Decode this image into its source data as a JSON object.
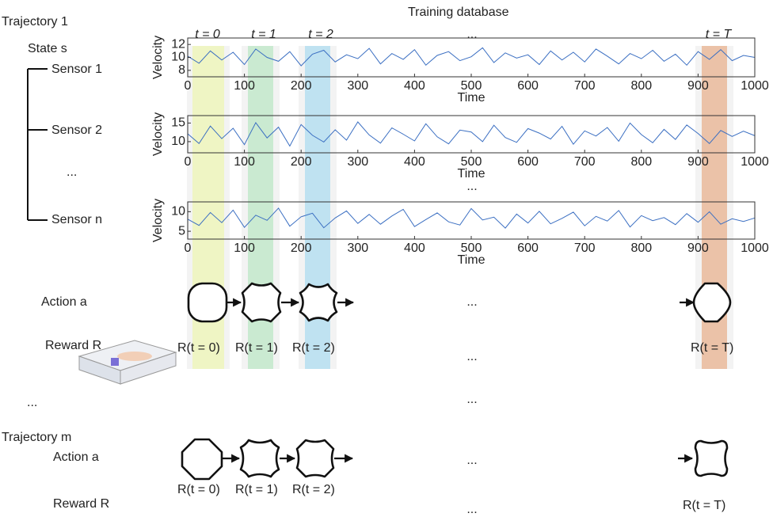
{
  "diagram": {
    "title": "Training database",
    "trajectory_1": {
      "label": "Trajectory 1",
      "state": "State s",
      "sensors": [
        "Sensor 1",
        "Sensor 2",
        "...",
        "Sensor n"
      ],
      "time_labels": [
        "t = 0",
        "t = 1",
        "t = 2",
        "...",
        "t = T"
      ],
      "sensor_ellipsis": "...",
      "action": "Action a",
      "action_ellipsis": "...",
      "reward": "Reward R",
      "rewards": [
        "R(t = 0)",
        "R(t = 1)",
        "R(t = 2)",
        "...",
        "R(t = T)"
      ]
    },
    "trajectory_ellipsis": "...",
    "middle_ellipsis": "...",
    "trajectory_m": {
      "label": "Trajectory m",
      "action": "Action a",
      "action_ellipsis": "...",
      "reward": "Reward R",
      "rewards": [
        "R(t = 0)",
        "R(t = 1)",
        "R(t = 2)",
        "...",
        "R(t = T)"
      ]
    }
  },
  "chart_data": [
    {
      "type": "line",
      "ylabel": "Velocity",
      "xlabel": "Time",
      "x": [
        0,
        20,
        40,
        60,
        80,
        100,
        120,
        140,
        160,
        180,
        200,
        220,
        240,
        260,
        280,
        300,
        320,
        340,
        360,
        380,
        400,
        420,
        440,
        460,
        480,
        500,
        520,
        540,
        560,
        580,
        600,
        620,
        640,
        660,
        680,
        700,
        720,
        740,
        760,
        780,
        800,
        820,
        840,
        860,
        880,
        900,
        920,
        940,
        960,
        980,
        1000
      ],
      "series": [
        {
          "color": "#3b6fc2",
          "values": [
            10.2,
            9.1,
            11.0,
            9.6,
            10.8,
            8.9,
            11.3,
            10.0,
            9.4,
            10.9,
            8.7,
            10.5,
            11.1,
            9.3,
            10.4,
            9.8,
            11.4,
            9.0,
            10.6,
            9.7,
            11.2,
            8.8,
            10.3,
            10.9,
            9.5,
            10.1,
            11.5,
            9.2,
            10.7,
            9.9,
            10.4,
            8.9,
            11.0,
            9.6,
            10.8,
            9.3,
            11.3,
            10.2,
            9.0,
            10.6,
            9.8,
            11.1,
            9.4,
            10.5,
            8.8,
            10.9,
            9.7,
            11.2,
            9.5,
            10.3,
            10.0
          ]
        }
      ],
      "xlim": [
        0,
        1000
      ],
      "ylim": [
        7,
        13
      ],
      "xticks": [
        0,
        100,
        200,
        300,
        400,
        500,
        600,
        700,
        800,
        900,
        1000
      ],
      "yticks": [
        8,
        10,
        12
      ]
    },
    {
      "type": "line",
      "ylabel": "Velocity",
      "xlabel": "Time",
      "x": [
        0,
        20,
        40,
        60,
        80,
        100,
        120,
        140,
        160,
        180,
        200,
        220,
        240,
        260,
        280,
        300,
        320,
        340,
        360,
        380,
        400,
        420,
        440,
        460,
        480,
        500,
        520,
        540,
        560,
        580,
        600,
        620,
        640,
        660,
        680,
        700,
        720,
        740,
        760,
        780,
        800,
        820,
        840,
        860,
        880,
        900,
        920,
        940,
        960,
        980,
        1000
      ],
      "series": [
        {
          "color": "#3b6fc2",
          "values": [
            12.1,
            9.5,
            14.2,
            10.8,
            13.6,
            9.2,
            15.1,
            11.0,
            13.9,
            8.8,
            14.6,
            11.7,
            9.9,
            13.2,
            10.4,
            15.3,
            11.8,
            9.6,
            13.7,
            12.0,
            10.2,
            14.8,
            11.3,
            9.4,
            13.1,
            12.6,
            10.0,
            14.4,
            11.1,
            9.8,
            13.5,
            12.3,
            10.7,
            14.1,
            9.3,
            12.9,
            11.5,
            13.8,
            10.1,
            15.0,
            11.9,
            9.7,
            13.3,
            10.6,
            14.5,
            12.2,
            9.5,
            13.0,
            11.4,
            12.8,
            11.6
          ]
        }
      ],
      "xlim": [
        0,
        1000
      ],
      "ylim": [
        7,
        17
      ],
      "xticks": [
        0,
        100,
        200,
        300,
        400,
        500,
        600,
        700,
        800,
        900,
        1000
      ],
      "yticks": [
        10,
        15
      ]
    },
    {
      "type": "line",
      "ylabel": "Velocity",
      "xlabel": "Time",
      "x": [
        0,
        20,
        40,
        60,
        80,
        100,
        120,
        140,
        160,
        180,
        200,
        220,
        240,
        260,
        280,
        300,
        320,
        340,
        360,
        380,
        400,
        420,
        440,
        460,
        480,
        500,
        520,
        540,
        560,
        580,
        600,
        620,
        640,
        660,
        680,
        700,
        720,
        740,
        760,
        780,
        800,
        820,
        840,
        860,
        880,
        900,
        920,
        940,
        960,
        980,
        1000
      ],
      "series": [
        {
          "color": "#3b6fc2",
          "values": [
            8.1,
            6.5,
            9.8,
            7.2,
            10.4,
            6.0,
            9.1,
            7.8,
            10.9,
            6.3,
            8.7,
            9.6,
            5.9,
            8.4,
            10.2,
            7.0,
            9.3,
            6.8,
            8.9,
            10.6,
            6.2,
            8.0,
            9.7,
            7.4,
            6.6,
            10.8,
            7.9,
            8.6,
            5.8,
            9.4,
            7.1,
            10.1,
            6.9,
            8.3,
            9.9,
            6.4,
            8.8,
            7.6,
            10.3,
            6.1,
            9.0,
            7.7,
            8.5,
            6.7,
            9.5,
            7.3,
            10.0,
            6.8,
            8.2,
            7.5,
            8.4
          ]
        }
      ],
      "xlim": [
        0,
        1000
      ],
      "ylim": [
        3,
        12.5
      ],
      "xticks": [
        0,
        100,
        200,
        300,
        400,
        500,
        600,
        700,
        800,
        900,
        1000
      ],
      "yticks": [
        5,
        10
      ]
    }
  ]
}
